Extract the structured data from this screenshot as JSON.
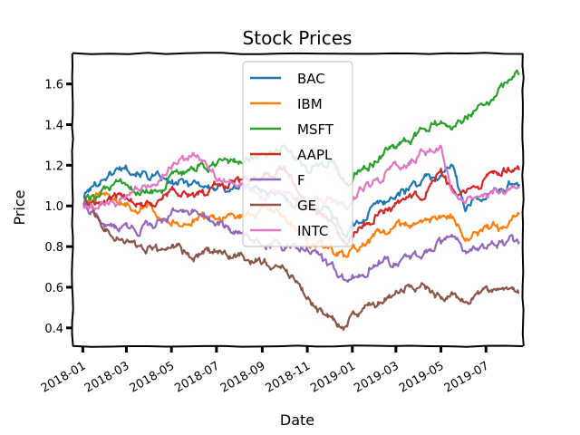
{
  "chart_data": {
    "type": "line",
    "title": "Stock Prices",
    "xlabel": "Date",
    "ylabel": "Price",
    "xlim": [
      "2017-12-18",
      "2019-08-20"
    ],
    "ylim": [
      0.31,
      1.75
    ],
    "yticks": [
      0.4,
      0.6,
      0.8,
      1.0,
      1.2,
      1.4,
      1.6
    ],
    "ytick_labels": [
      "0.4",
      "0.6",
      "0.8",
      "1.0",
      "1.2",
      "1.4",
      "1.6"
    ],
    "xticks": [
      "2018-01-01",
      "2018-03-01",
      "2018-05-01",
      "2018-07-01",
      "2018-09-01",
      "2018-11-01",
      "2019-01-01",
      "2019-03-01",
      "2019-05-01",
      "2019-07-01"
    ],
    "xtick_labels": [
      "2018-01",
      "2018-03",
      "2018-05",
      "2018-07",
      "2018-09",
      "2018-11",
      "2019-01",
      "2019-03",
      "2019-05",
      "2019-07"
    ],
    "grid": false,
    "legend": "upper-center",
    "series": [
      {
        "name": "BAC",
        "color": "#1f77b4",
        "x": [
          "2018-01-02",
          "2018-02-01",
          "2018-03-01",
          "2018-04-02",
          "2018-05-01",
          "2018-06-01",
          "2018-07-02",
          "2018-08-01",
          "2018-09-04",
          "2018-10-01",
          "2018-11-01",
          "2018-12-03",
          "2018-12-24",
          "2019-01-02",
          "2019-02-01",
          "2019-03-01",
          "2019-04-01",
          "2019-05-01",
          "2019-05-15",
          "2019-06-03",
          "2019-07-01",
          "2019-08-01",
          "2019-08-15"
        ],
        "values": [
          1.05,
          1.15,
          1.2,
          1.15,
          1.1,
          1.12,
          1.08,
          1.1,
          1.08,
          1.03,
          1.0,
          0.98,
          0.85,
          0.9,
          1.0,
          1.05,
          1.12,
          1.15,
          1.2,
          1.0,
          1.05,
          1.1,
          1.12
        ]
      },
      {
        "name": "IBM",
        "color": "#ff7f0e",
        "x": [
          "2018-01-02",
          "2018-02-01",
          "2018-03-01",
          "2018-04-02",
          "2018-05-01",
          "2018-06-01",
          "2018-07-02",
          "2018-08-01",
          "2018-09-04",
          "2018-10-01",
          "2018-11-01",
          "2018-12-03",
          "2018-12-24",
          "2019-01-02",
          "2019-02-01",
          "2019-03-01",
          "2019-04-01",
          "2019-05-01",
          "2019-05-15",
          "2019-06-03",
          "2019-07-01",
          "2019-08-01",
          "2019-08-15"
        ],
        "values": [
          1.0,
          1.05,
          1.0,
          1.0,
          0.93,
          0.92,
          0.95,
          0.95,
          0.98,
          0.95,
          0.8,
          0.8,
          0.73,
          0.78,
          0.85,
          0.9,
          0.92,
          0.95,
          0.96,
          0.83,
          0.88,
          0.9,
          0.98
        ]
      },
      {
        "name": "MSFT",
        "color": "#2ca02c",
        "x": [
          "2018-01-02",
          "2018-02-01",
          "2018-03-01",
          "2018-04-02",
          "2018-05-01",
          "2018-06-01",
          "2018-07-02",
          "2018-08-01",
          "2018-09-04",
          "2018-10-01",
          "2018-11-01",
          "2018-12-03",
          "2018-12-24",
          "2019-01-02",
          "2019-02-01",
          "2019-03-01",
          "2019-04-01",
          "2019-05-01",
          "2019-05-15",
          "2019-06-03",
          "2019-07-01",
          "2019-08-01",
          "2019-08-15"
        ],
        "values": [
          1.02,
          1.08,
          1.1,
          1.05,
          1.12,
          1.18,
          1.2,
          1.22,
          1.25,
          1.28,
          1.2,
          1.22,
          1.1,
          1.15,
          1.22,
          1.28,
          1.35,
          1.42,
          1.38,
          1.45,
          1.52,
          1.62,
          1.66
        ]
      },
      {
        "name": "AAPL",
        "color": "#d62728",
        "x": [
          "2018-01-02",
          "2018-02-01",
          "2018-03-01",
          "2018-04-02",
          "2018-05-01",
          "2018-06-01",
          "2018-07-02",
          "2018-08-01",
          "2018-09-04",
          "2018-10-01",
          "2018-11-01",
          "2018-12-03",
          "2018-12-24",
          "2019-01-02",
          "2019-02-01",
          "2019-03-01",
          "2019-04-01",
          "2019-05-01",
          "2019-05-15",
          "2019-06-03",
          "2019-07-01",
          "2019-08-01",
          "2019-08-15"
        ],
        "values": [
          1.0,
          1.02,
          1.05,
          1.0,
          1.08,
          1.05,
          1.1,
          1.12,
          1.15,
          1.18,
          1.0,
          0.95,
          0.8,
          0.85,
          0.95,
          1.0,
          1.05,
          1.15,
          1.08,
          1.05,
          1.12,
          1.18,
          1.2
        ]
      },
      {
        "name": "F",
        "color": "#9467bd",
        "x": [
          "2018-01-02",
          "2018-02-01",
          "2018-03-01",
          "2018-04-02",
          "2018-05-01",
          "2018-06-01",
          "2018-07-02",
          "2018-08-01",
          "2018-09-04",
          "2018-10-01",
          "2018-11-01",
          "2018-12-03",
          "2018-12-24",
          "2019-01-02",
          "2019-02-01",
          "2019-03-01",
          "2019-04-01",
          "2019-05-01",
          "2019-05-15",
          "2019-06-03",
          "2019-07-01",
          "2019-08-01",
          "2019-08-15"
        ],
        "values": [
          1.0,
          0.9,
          0.88,
          0.9,
          0.95,
          0.98,
          0.92,
          0.85,
          0.82,
          0.8,
          0.78,
          0.72,
          0.62,
          0.66,
          0.72,
          0.72,
          0.75,
          0.82,
          0.84,
          0.78,
          0.8,
          0.82,
          0.82
        ]
      },
      {
        "name": "GE",
        "color": "#8c564b",
        "x": [
          "2018-01-02",
          "2018-02-01",
          "2018-03-01",
          "2018-04-02",
          "2018-05-01",
          "2018-06-01",
          "2018-07-02",
          "2018-08-01",
          "2018-09-04",
          "2018-10-01",
          "2018-11-01",
          "2018-12-03",
          "2018-12-24",
          "2019-01-02",
          "2019-02-01",
          "2019-03-01",
          "2019-04-01",
          "2019-05-01",
          "2019-05-15",
          "2019-06-03",
          "2019-07-01",
          "2019-08-01",
          "2019-08-15"
        ],
        "values": [
          1.05,
          0.9,
          0.82,
          0.78,
          0.8,
          0.75,
          0.78,
          0.75,
          0.73,
          0.7,
          0.55,
          0.45,
          0.4,
          0.45,
          0.52,
          0.58,
          0.6,
          0.55,
          0.55,
          0.55,
          0.58,
          0.58,
          0.57
        ]
      },
      {
        "name": "INTC",
        "color": "#e377c2",
        "x": [
          "2018-01-02",
          "2018-02-01",
          "2018-03-01",
          "2018-04-02",
          "2018-05-01",
          "2018-06-01",
          "2018-07-02",
          "2018-08-01",
          "2018-09-04",
          "2018-10-01",
          "2018-11-01",
          "2018-12-03",
          "2018-12-24",
          "2019-01-02",
          "2019-02-01",
          "2019-03-01",
          "2019-04-01",
          "2019-05-01",
          "2019-05-15",
          "2019-06-03",
          "2019-07-01",
          "2019-08-01",
          "2019-08-15"
        ],
        "values": [
          1.0,
          0.98,
          1.05,
          1.1,
          1.2,
          1.25,
          1.15,
          1.1,
          1.05,
          1.08,
          1.0,
          1.05,
          1.0,
          1.05,
          1.12,
          1.2,
          1.25,
          1.3,
          1.1,
          1.0,
          1.05,
          1.08,
          1.12
        ]
      }
    ]
  }
}
